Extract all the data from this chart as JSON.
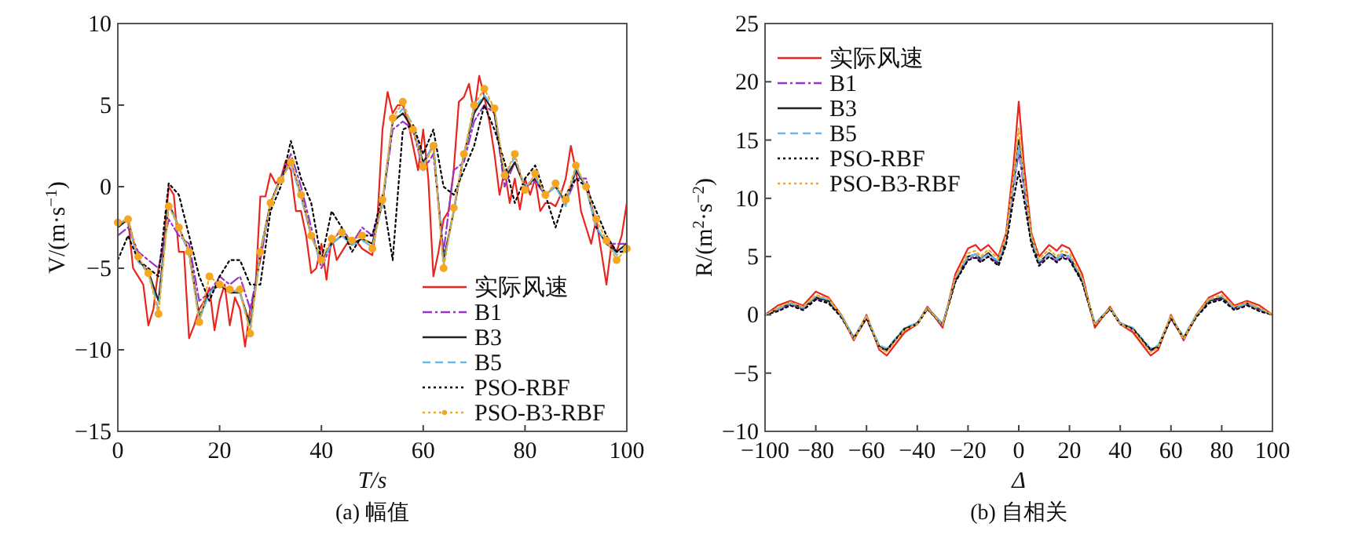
{
  "chart_data": [
    {
      "type": "line",
      "title": "(a) 幅值",
      "xlabel": "T/s",
      "ylabel": "V/(m·s$^{−1}$)",
      "xlim": [
        0,
        100
      ],
      "ylim": [
        -15,
        10
      ],
      "xticks": [
        0,
        20,
        40,
        60,
        80,
        100
      ],
      "yticks": [
        -15,
        -10,
        -5,
        0,
        5,
        10
      ],
      "legend": "bottom right",
      "series": [
        {
          "name": "实际风速",
          "color": "#e8251f",
          "line_style": "solid",
          "x": [
            0,
            1,
            2,
            3,
            4,
            5,
            6,
            7,
            8,
            9,
            10,
            11,
            12,
            13,
            14,
            15,
            16,
            17,
            18,
            19,
            20,
            21,
            22,
            23,
            24,
            25,
            26,
            27,
            28,
            29,
            30,
            31,
            32,
            33,
            34,
            35,
            36,
            37,
            38,
            39,
            40,
            41,
            42,
            43,
            44,
            45,
            46,
            47,
            48,
            49,
            50,
            51,
            52,
            53,
            54,
            55,
            56,
            57,
            58,
            59,
            60,
            61,
            62,
            63,
            64,
            65,
            66,
            67,
            68,
            69,
            70,
            71,
            72,
            73,
            74,
            75,
            76,
            77,
            78,
            79,
            80,
            81,
            82,
            83,
            84,
            85,
            86,
            87,
            88,
            89,
            90,
            91,
            92,
            93,
            94,
            95,
            96,
            97,
            98,
            99,
            100
          ],
          "values": [
            -2.5,
            -2.2,
            -2,
            -5,
            -5.5,
            -6,
            -8.5,
            -7.5,
            -5,
            -3.5,
            0,
            -0.5,
            -4,
            -4,
            -9.3,
            -8.5,
            -7.5,
            -7,
            -6.2,
            -8.8,
            -7,
            -6,
            -8.5,
            -6.8,
            -7.5,
            -9.8,
            -7.5,
            -6.5,
            -0.6,
            -0.6,
            0.8,
            0.2,
            0.5,
            1.6,
            1,
            -1.5,
            -1.5,
            -3,
            -5.3,
            -5,
            -3.5,
            -5.7,
            -3,
            -4.5,
            -4,
            -3.5,
            -3.5,
            -3.4,
            -3.8,
            -4,
            -4.2,
            -2,
            3.5,
            5.8,
            4.5,
            5,
            5,
            4,
            2.5,
            1,
            3.5,
            0.5,
            -5.5,
            -4,
            -2,
            -1.5,
            1,
            5.2,
            5.5,
            6.3,
            4.5,
            6.8,
            5.5,
            4,
            2,
            -0.5,
            1,
            -1,
            0.5,
            -1.4,
            0.5,
            -0.5,
            0.5,
            -1.5,
            -1,
            -1,
            -1.2,
            -0.5,
            0.5,
            2.5,
            1,
            -1.5,
            -2.5,
            -3.5,
            -2,
            -4,
            -6,
            -3.5,
            -4,
            -3,
            -1
          ]
        },
        {
          "name": "B1",
          "color": "#9933cc",
          "line_style": "dashdot",
          "x": [
            0,
            2,
            4,
            6,
            8,
            10,
            12,
            14,
            16,
            18,
            20,
            22,
            24,
            26,
            28,
            30,
            32,
            34,
            36,
            38,
            40,
            42,
            44,
            46,
            48,
            50,
            52,
            54,
            56,
            58,
            60,
            62,
            64,
            66,
            68,
            70,
            72,
            74,
            76,
            78,
            80,
            82,
            84,
            86,
            88,
            90,
            92,
            94,
            96,
            98,
            100
          ],
          "values": [
            -3,
            -2.5,
            -4,
            -4.5,
            -5,
            -2,
            -3,
            -3.5,
            -7,
            -6.5,
            -5.5,
            -6,
            -5.5,
            -7.5,
            -4.5,
            -1,
            0.5,
            2,
            0,
            -2.5,
            -5,
            -3.5,
            -2.5,
            -3.5,
            -2.5,
            -3,
            -1,
            3.5,
            4,
            3.5,
            1,
            2,
            -4,
            1,
            1.5,
            4,
            5,
            4.5,
            0,
            1.5,
            0,
            0.3,
            -0.5,
            0,
            -1,
            0.5,
            0.5,
            -2.5,
            -3.5,
            -3.5,
            -3.5
          ]
        },
        {
          "name": "B3",
          "color": "#222222",
          "line_style": "solid",
          "x": [
            0,
            2,
            4,
            6,
            8,
            10,
            12,
            14,
            16,
            18,
            20,
            22,
            24,
            26,
            28,
            30,
            32,
            34,
            36,
            38,
            40,
            42,
            44,
            46,
            48,
            50,
            52,
            54,
            56,
            58,
            60,
            62,
            64,
            66,
            68,
            70,
            72,
            74,
            76,
            78,
            80,
            82,
            84,
            86,
            88,
            90,
            92,
            94,
            96,
            98,
            100
          ],
          "values": [
            -2.5,
            -2,
            -4.5,
            -5.2,
            -7,
            -1,
            -2.5,
            -4,
            -8,
            -6.5,
            -6,
            -6.5,
            -6.5,
            -8.5,
            -4,
            -1,
            0.5,
            1.5,
            -0.5,
            -3,
            -4.5,
            -3.5,
            -3,
            -3.5,
            -3.2,
            -3.5,
            -1,
            4,
            4.5,
            3.5,
            1.5,
            2.5,
            -4.5,
            -1.5,
            2,
            4.5,
            5.5,
            4.5,
            0.5,
            1.5,
            0,
            0.5,
            -0.5,
            0,
            -1,
            1,
            0,
            -2.5,
            -3.5,
            -4,
            -3.5
          ]
        },
        {
          "name": "B5",
          "color": "#66bbee",
          "line_style": "dashed",
          "x": [
            0,
            2,
            4,
            6,
            8,
            10,
            12,
            14,
            16,
            18,
            20,
            22,
            24,
            26,
            28,
            30,
            32,
            34,
            36,
            38,
            40,
            42,
            44,
            46,
            48,
            50,
            52,
            54,
            56,
            58,
            60,
            62,
            64,
            66,
            68,
            70,
            72,
            74,
            76,
            78,
            80,
            82,
            84,
            86,
            88,
            90,
            92,
            94,
            96,
            98,
            100
          ],
          "values": [
            -2.3,
            -2,
            -4.6,
            -5.3,
            -7.5,
            -1,
            -2.5,
            -4.2,
            -8.2,
            -6.5,
            -6,
            -6.3,
            -6.5,
            -8.8,
            -4,
            -1.2,
            0.5,
            1.4,
            -0.7,
            -3,
            -4.7,
            -3.5,
            -3,
            -3.6,
            -3.3,
            -3.7,
            -1,
            4,
            4.8,
            3.8,
            1.3,
            2.7,
            -4.8,
            -1.5,
            2,
            4.8,
            5.6,
            4.8,
            0.7,
            1.8,
            0,
            0.6,
            -0.5,
            0,
            -1.2,
            1.2,
            0,
            -2.5,
            -3.4,
            -4.2,
            -3.7
          ]
        },
        {
          "name": "PSO-RBF",
          "color": "#000000",
          "line_style": "dotted",
          "x": [
            0,
            2,
            4,
            6,
            8,
            10,
            12,
            14,
            16,
            18,
            20,
            22,
            24,
            26,
            28,
            30,
            32,
            34,
            36,
            38,
            40,
            42,
            44,
            46,
            48,
            50,
            52,
            54,
            56,
            58,
            60,
            62,
            64,
            66,
            68,
            70,
            72,
            74,
            76,
            78,
            80,
            82,
            84,
            86,
            88,
            90,
            92,
            94,
            96,
            98,
            100
          ],
          "values": [
            -4.5,
            -3,
            -4.5,
            -5,
            -5.5,
            0.2,
            -0.5,
            -3,
            -5.5,
            -7,
            -5.5,
            -4.5,
            -4.5,
            -6,
            -6,
            -1.5,
            0,
            2.8,
            0.5,
            -1,
            -4.5,
            -1.5,
            -2.5,
            -4,
            -3,
            -3,
            -0.5,
            -4.5,
            3.5,
            3.8,
            2,
            3.5,
            0,
            -0.5,
            1,
            2.5,
            5,
            3.5,
            1.5,
            -1,
            0.5,
            1.3,
            -0.5,
            -2.5,
            -0.5,
            0.5,
            0,
            -1.5,
            -3,
            -4,
            -4
          ]
        },
        {
          "name": "PSO-B3-RBF",
          "color": "#f5a623",
          "line_style": "dotted",
          "marker": "circle",
          "x": [
            0,
            2,
            4,
            6,
            8,
            10,
            12,
            14,
            16,
            18,
            20,
            22,
            24,
            26,
            28,
            30,
            32,
            34,
            36,
            38,
            40,
            42,
            44,
            46,
            48,
            50,
            52,
            54,
            56,
            58,
            60,
            62,
            64,
            66,
            68,
            70,
            72,
            74,
            76,
            78,
            80,
            82,
            84,
            86,
            88,
            90,
            92,
            94,
            96,
            98,
            100
          ],
          "values": [
            -2.2,
            -2,
            -4.3,
            -5.3,
            -7.8,
            -1.2,
            -2.5,
            -4,
            -8.3,
            -5.5,
            -6,
            -6.3,
            -6.3,
            -9,
            -4,
            -1,
            0.4,
            1.5,
            -0.5,
            -3,
            -4.5,
            -3.2,
            -2.8,
            -3.3,
            -3,
            -3.8,
            -0.8,
            4.2,
            5.2,
            3.5,
            1.2,
            2.5,
            -5,
            -1.3,
            2,
            5,
            6,
            4.8,
            0.7,
            2,
            -0.2,
            0.8,
            -0.5,
            0.2,
            -0.8,
            1.3,
            0,
            -2,
            -3.3,
            -4.5,
            -3.8
          ]
        }
      ]
    },
    {
      "type": "line",
      "title": "(b) 自相关",
      "xlabel": "Δ",
      "ylabel": "R/(m$^{2}$·s$^{−2}$)",
      "xlim": [
        -100,
        100
      ],
      "ylim": [
        -10,
        25
      ],
      "xticks": [
        -100,
        -80,
        -60,
        -40,
        -20,
        0,
        20,
        40,
        60,
        80,
        100
      ],
      "yticks": [
        -10,
        -5,
        0,
        5,
        10,
        15,
        20,
        25
      ],
      "legend": "top left",
      "x": [
        -100,
        -95,
        -90,
        -85,
        -80,
        -75,
        -70,
        -65,
        -60,
        -55,
        -52,
        -45,
        -40,
        -36,
        -30,
        -25,
        -20,
        -17,
        -15,
        -12,
        -8,
        -5,
        -2,
        0,
        2,
        5,
        8,
        12,
        15,
        17,
        20,
        25,
        30,
        36,
        40,
        45,
        52,
        55,
        60,
        65,
        70,
        75,
        80,
        85,
        90,
        95,
        100
      ],
      "series": [
        {
          "name": "实际风速",
          "color": "#e8251f",
          "line_style": "solid",
          "values": [
            0,
            0.8,
            1.2,
            0.8,
            2,
            1.5,
            0,
            -2.2,
            0,
            -3,
            -3.5,
            -1.5,
            -0.8,
            0.7,
            -1.1,
            3.5,
            5.7,
            6,
            5.5,
            6,
            5,
            7,
            13,
            18.3,
            13,
            7,
            5,
            6,
            5.5,
            6,
            5.7,
            3.5,
            -1.1,
            0.7,
            -0.8,
            -1.5,
            -3.5,
            -3,
            0,
            -2.2,
            0,
            1.5,
            2,
            0.8,
            1.2,
            0.8,
            0
          ]
        },
        {
          "name": "B1",
          "color": "#9933cc",
          "line_style": "dashdot",
          "values": [
            0,
            0.4,
            0.9,
            0.5,
            1.4,
            1.1,
            -0.1,
            -2.1,
            -0.3,
            -2.8,
            -3.1,
            -1.3,
            -0.8,
            0.5,
            -0.9,
            2.9,
            4.8,
            5,
            4.6,
            5,
            4.4,
            6.3,
            11,
            14,
            11,
            6.3,
            4.4,
            5,
            4.6,
            5,
            4.8,
            2.9,
            -0.9,
            0.5,
            -0.8,
            -1.3,
            -3.1,
            -2.8,
            -0.3,
            -2.1,
            -0.1,
            1.1,
            1.4,
            0.5,
            0.9,
            0.4,
            0
          ]
        },
        {
          "name": "B3",
          "color": "#222222",
          "line_style": "solid",
          "values": [
            0,
            0.5,
            1,
            0.6,
            1.5,
            1.2,
            0,
            -2,
            -0.2,
            -2.7,
            -3,
            -1.2,
            -0.7,
            0.6,
            -0.8,
            3,
            5,
            5.2,
            4.8,
            5.3,
            4.5,
            6.5,
            11.5,
            15,
            11.5,
            6.5,
            4.5,
            5.3,
            4.8,
            5.2,
            5,
            3,
            -0.8,
            0.6,
            -0.7,
            -1.2,
            -3,
            -2.7,
            -0.2,
            -2,
            0,
            1.2,
            1.5,
            0.6,
            1,
            0.5,
            0
          ]
        },
        {
          "name": "B5",
          "color": "#66bbee",
          "line_style": "dashed",
          "values": [
            0,
            0.5,
            1,
            0.6,
            1.6,
            1.3,
            0,
            -1.9,
            -0.1,
            -2.6,
            -2.9,
            -1.1,
            -0.7,
            0.6,
            -0.8,
            3.1,
            5,
            5.2,
            4.8,
            5.2,
            4.6,
            6.5,
            11.3,
            14.5,
            11.3,
            6.5,
            4.6,
            5.2,
            4.8,
            5.2,
            5,
            3.1,
            -0.8,
            0.6,
            -0.7,
            -1.1,
            -2.9,
            -2.6,
            -0.1,
            -1.9,
            0,
            1.3,
            1.6,
            0.6,
            1,
            0.5,
            0
          ]
        },
        {
          "name": "PSO-RBF",
          "color": "#000000",
          "line_style": "dotted",
          "values": [
            0,
            0.3,
            0.8,
            0.4,
            1.3,
            1,
            -0.2,
            -2,
            -0.3,
            -2.8,
            -3,
            -1.2,
            -0.8,
            0.5,
            -0.9,
            2.8,
            4.7,
            4.9,
            4.5,
            5,
            4.2,
            6,
            10,
            12.3,
            10,
            6,
            4.2,
            5,
            4.5,
            4.9,
            4.7,
            2.8,
            -0.9,
            0.5,
            -0.8,
            -1.2,
            -3,
            -2.8,
            -0.3,
            -2,
            -0.2,
            1,
            1.3,
            0.4,
            0.8,
            0.3,
            0
          ]
        },
        {
          "name": "PSO-B3-RBF",
          "color": "#f5a623",
          "line_style": "dotted",
          "values": [
            0,
            0.6,
            1.1,
            0.7,
            1.7,
            1.4,
            0,
            -2.1,
            -0.1,
            -2.8,
            -3.2,
            -1.3,
            -0.8,
            0.6,
            -0.9,
            3.2,
            5.3,
            5.5,
            5,
            5.6,
            4.8,
            6.8,
            12,
            16,
            12,
            6.8,
            4.8,
            5.6,
            5,
            5.5,
            5.3,
            3.2,
            -0.9,
            0.6,
            -0.8,
            -1.3,
            -3.2,
            -2.8,
            -0.1,
            -2.1,
            0,
            1.4,
            1.7,
            0.7,
            1.1,
            0.6,
            0
          ]
        }
      ]
    }
  ]
}
